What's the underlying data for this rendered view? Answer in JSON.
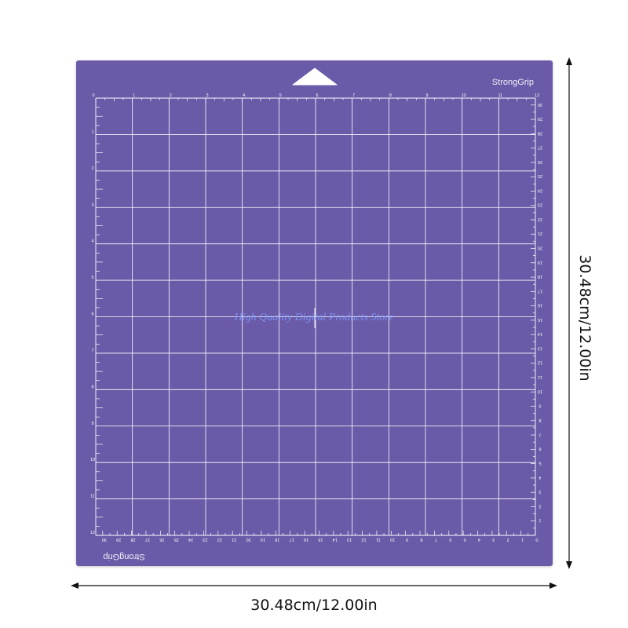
{
  "mat": {
    "brand_top": "StrongGrip",
    "brand_bottom": "StrongGrip",
    "watermark": "High Quality Digital Products Store",
    "inch_count": 12,
    "cm_count": 30,
    "color": "#6a5aa8",
    "grid_color": "#ffffff"
  },
  "dimensions": {
    "width_label": "30.48cm/12.00in",
    "height_label": "30.48cm/12.00in"
  }
}
